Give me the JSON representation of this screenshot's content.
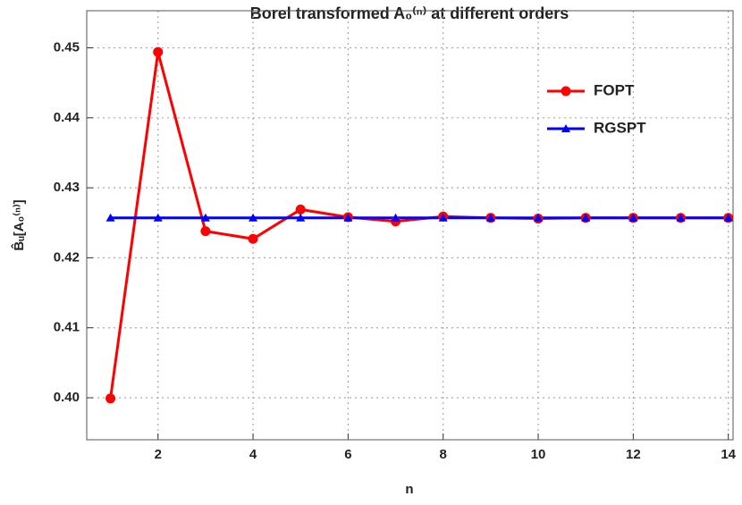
{
  "chart_data": {
    "type": "line",
    "title": "Borel transformed A₀⁽ⁿ⁾ at different orders",
    "x_label": "n",
    "y_label": "B̂ᵤ[A₀⁽ⁿ⁾]",
    "x": [
      1,
      2,
      3,
      4,
      5,
      6,
      7,
      8,
      9,
      10,
      11,
      12,
      13,
      14
    ],
    "series": [
      {
        "name": "FOPT",
        "color": "#ff0000",
        "marker": "circle",
        "values": [
          0.3999,
          0.4494,
          0.4238,
          0.4227,
          0.4269,
          0.4258,
          0.4252,
          0.4259,
          0.4257,
          0.4256,
          0.4257,
          0.4257,
          0.4257,
          0.4257
        ]
      },
      {
        "name": "RGSPT",
        "color": "#0000ff",
        "marker": "triangle",
        "values": [
          0.4257,
          0.4257,
          0.4257,
          0.4257,
          0.4257,
          0.4257,
          0.4257,
          0.4257,
          0.4257,
          0.4257,
          0.4257,
          0.4257,
          0.4257,
          0.4257
        ]
      }
    ],
    "xlim": [
      0.5,
      14.1
    ],
    "ylim": [
      0.394,
      0.4553
    ],
    "xticks": [
      2,
      4,
      6,
      8,
      10,
      12,
      14
    ],
    "yticks": [
      {
        "value": 0.4,
        "label": "0.40"
      },
      0.41,
      0.42,
      0.43,
      0.44,
      0.45
    ],
    "grid": true,
    "legend": "upper-right"
  }
}
